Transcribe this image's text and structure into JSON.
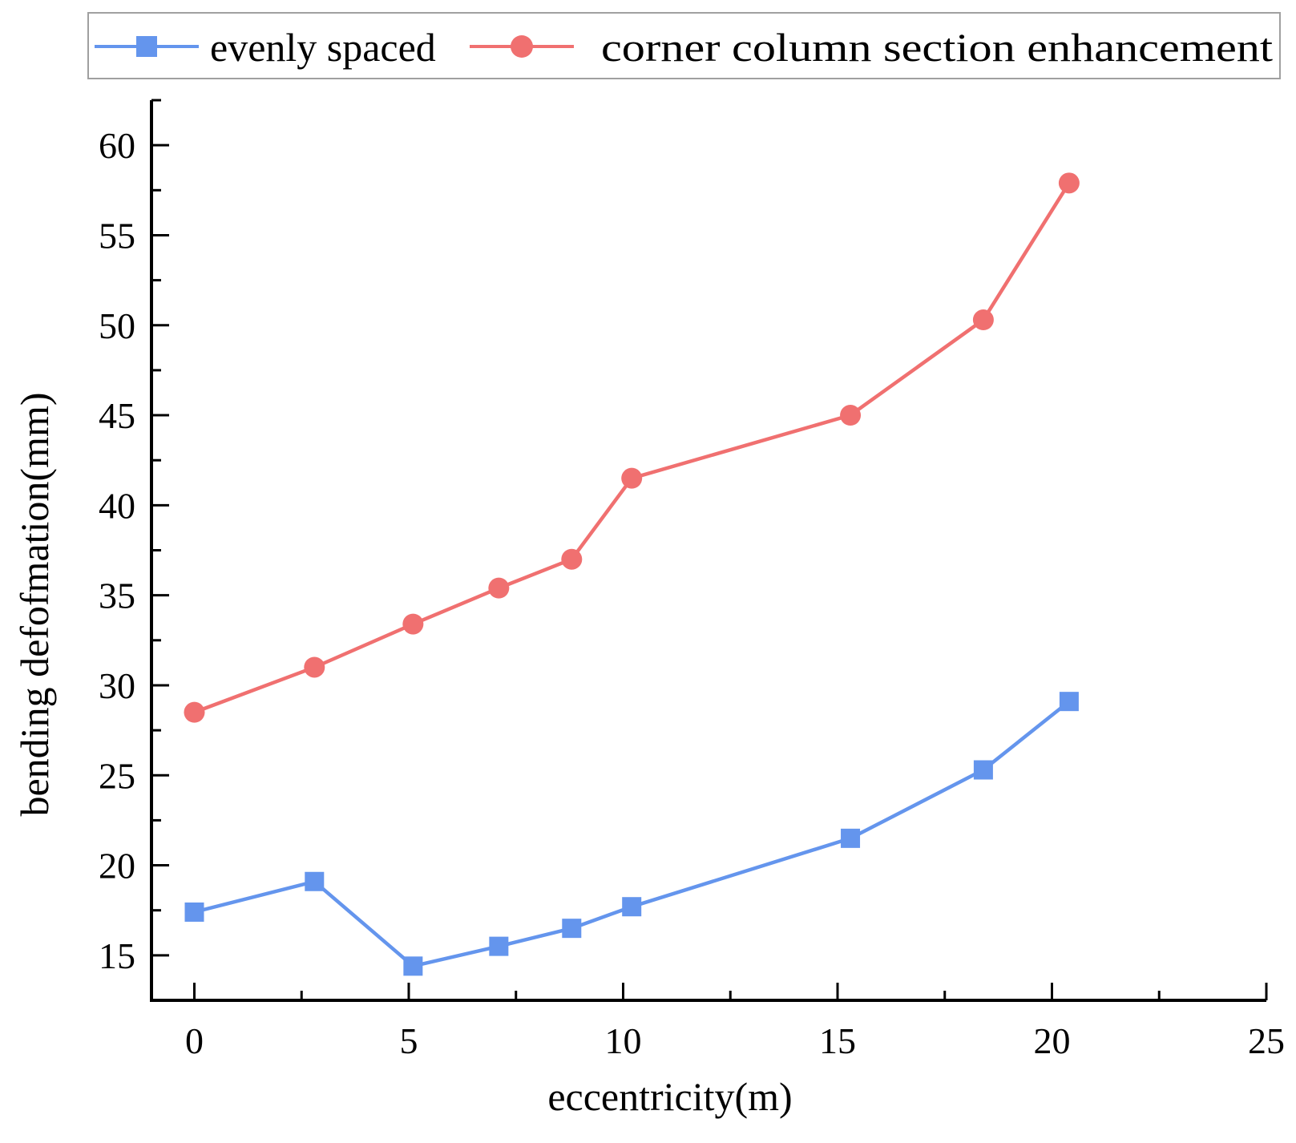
{
  "chart_data": {
    "type": "line",
    "title": "",
    "xlabel": "eccentricity(m)",
    "ylabel": "bending defofmation(mm)",
    "xlim": [
      -1,
      25
    ],
    "ylim": [
      12.5,
      62.5
    ],
    "xticks": [
      0,
      5,
      10,
      15,
      20,
      25
    ],
    "xtick_labels": [
      "0",
      "5",
      "10",
      "15",
      "20",
      "25"
    ],
    "yticks": [
      15,
      20,
      25,
      30,
      35,
      40,
      45,
      50,
      55,
      60
    ],
    "ytick_labels": [
      "15",
      "20",
      "25",
      "30",
      "35",
      "40",
      "45",
      "50",
      "55",
      "60"
    ],
    "grid": false,
    "legend_position": "top",
    "series": [
      {
        "name": "evenly spaced",
        "marker": "square",
        "color": "#6495ED",
        "x": [
          0,
          2.8,
          5.1,
          7.1,
          8.8,
          10.2,
          15.3,
          18.4,
          20.4
        ],
        "values": [
          17.4,
          19.1,
          14.4,
          15.5,
          16.5,
          17.7,
          21.5,
          25.3,
          29.1
        ]
      },
      {
        "name": "corner column section enhancement",
        "marker": "circle",
        "color": "#F07070",
        "x": [
          0,
          2.8,
          5.1,
          7.1,
          8.8,
          10.2,
          15.3,
          18.4,
          20.4
        ],
        "values": [
          28.5,
          31.0,
          33.4,
          35.4,
          37.0,
          41.5,
          45.0,
          50.3,
          57.9
        ]
      }
    ]
  }
}
